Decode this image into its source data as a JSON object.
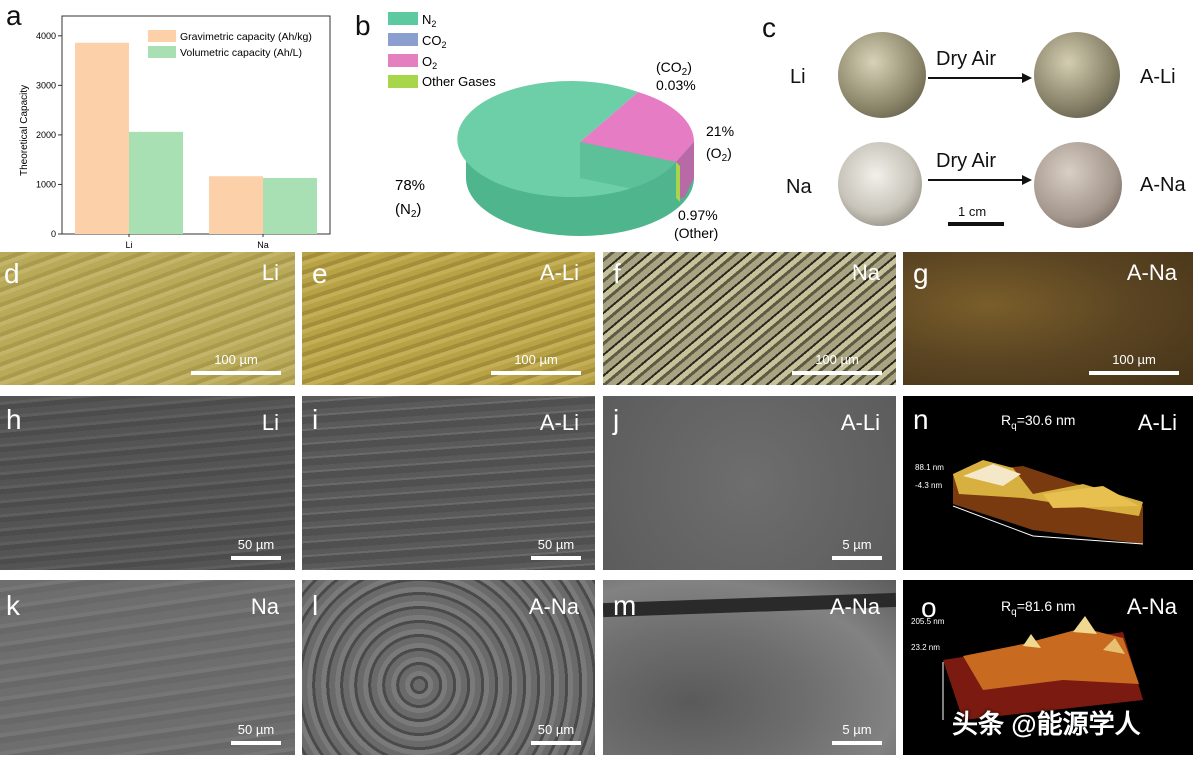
{
  "panels": {
    "a": "a",
    "b": "b",
    "c": "c",
    "d": "d",
    "e": "e",
    "f": "f",
    "g": "g",
    "h": "h",
    "i": "i",
    "j": "j",
    "k": "k",
    "l": "l",
    "m": "m",
    "n": "n",
    "o": "o"
  },
  "chart_data": {
    "type": "bar",
    "categories": [
      "Li",
      "Na"
    ],
    "series": [
      {
        "name": "Gravimetric capacity (Ah/kg)",
        "values": [
          3860,
          1166
        ],
        "color": "#fcd0a8"
      },
      {
        "name": "Volumetric capacity (Ah/L)",
        "values": [
          2062,
          1131
        ],
        "color": "#a8e0b4"
      }
    ],
    "ylabel": "Theoretical Capacity",
    "yticks": [
      0,
      1000,
      2000,
      3000,
      4000
    ],
    "ylim": [
      0,
      4400
    ],
    "legend": "top-right"
  },
  "pie": {
    "type": "pie",
    "legend": [
      {
        "label": "N",
        "sub": "2",
        "color": "#5cc9a0"
      },
      {
        "label": "CO",
        "sub": "2",
        "color": "#8a9fd0"
      },
      {
        "label": "O",
        "sub": "2",
        "color": "#e47fc0"
      },
      {
        "label": "Other Gases",
        "sub": "",
        "color": "#a8d64a"
      }
    ],
    "values": [
      78,
      0.03,
      21,
      0.97
    ],
    "labels": {
      "n2_pct": "78%",
      "n2_name": "(N",
      "n2_sub": "2",
      "n2_close": ")",
      "co2_name": "(CO",
      "co2_sub": "2",
      "co2_close": ")",
      "co2_pct": "0.03%",
      "o2_pct": "21%",
      "o2_name": "(O",
      "o2_sub": "2",
      "o2_close": ")",
      "other_pct": "0.97%",
      "other_name": "(Other)"
    }
  },
  "coins": {
    "li": "Li",
    "ali": "A-Li",
    "na": "Na",
    "ana": "A-Na",
    "arrow_label": "Dry Air",
    "scale": "1 cm"
  },
  "tiles": {
    "d": {
      "tag": "Li",
      "scale": "100 µm"
    },
    "e": {
      "tag": "A-Li",
      "scale": "100 µm"
    },
    "f": {
      "tag": "Na",
      "scale": "100 µm"
    },
    "g": {
      "tag": "A-Na",
      "scale": "100 µm"
    },
    "h": {
      "tag": "Li",
      "scale": "50 µm"
    },
    "i": {
      "tag": "A-Li",
      "scale": "50 µm"
    },
    "j": {
      "tag": "A-Li",
      "scale": "5 µm"
    },
    "k": {
      "tag": "Na",
      "scale": "50 µm"
    },
    "l": {
      "tag": "A-Na",
      "scale": "50 µm"
    },
    "m": {
      "tag": "A-Na",
      "scale": "5 µm"
    }
  },
  "afm": {
    "n": {
      "tag": "A-Li",
      "rq_label": "R",
      "rq_sub": "q",
      "rq_value": "=30.6 nm",
      "zmax": "88.1 nm",
      "zmin": "-4.3 nm"
    },
    "o": {
      "tag": "A-Na",
      "rq_label": "R",
      "rq_sub": "q",
      "rq_value": "=81.6 nm",
      "zmax": "205.5 nm",
      "zmin": "23.2 nm"
    }
  },
  "watermark": "头条 @能源学人"
}
